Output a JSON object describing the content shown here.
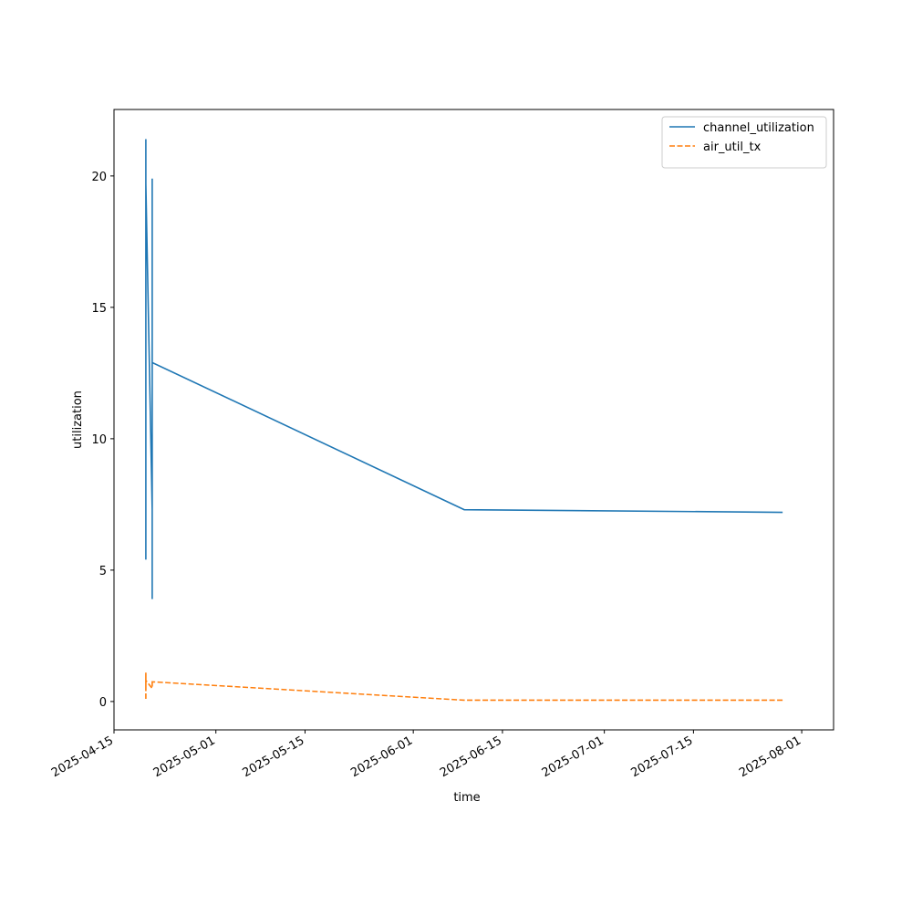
{
  "chart_data": {
    "type": "line",
    "x_label": "time",
    "y_label": "utilization",
    "x": [
      "2025-04-20",
      "2025-04-20",
      "2025-04-20",
      "2025-04-20",
      "2025-04-20",
      "2025-04-20",
      "2025-04-21",
      "2025-04-21",
      "2025-04-21",
      "2025-04-21",
      "2025-04-21",
      "2025-04-21",
      "2025-06-09",
      "2025-07-29"
    ],
    "series": [
      {
        "name": "channel_utilization",
        "color": "#1f77b4",
        "dash": "solid",
        "values": [
          21.4,
          9.3,
          19.6,
          5.4,
          17.1,
          19.7,
          7.3,
          19.9,
          9.5,
          18.0,
          3.9,
          12.9,
          7.3,
          7.2
        ]
      },
      {
        "name": "air_util_tx",
        "color": "#ff7f0e",
        "dash": "dashed",
        "values": [
          0.1,
          1.1,
          0.6,
          1.1,
          0.7,
          0.8,
          0.5,
          0.8,
          0.6,
          0.75,
          0.7,
          0.75,
          0.05,
          0.05
        ]
      }
    ],
    "xlim": [
      "2025-04-15",
      "2025-08-06"
    ],
    "xticks": [
      "2025-04-15",
      "2025-05-01",
      "2025-05-15",
      "2025-06-01",
      "2025-06-15",
      "2025-07-01",
      "2025-07-15",
      "2025-08-01"
    ],
    "ylim": [
      -1.08,
      22.53
    ],
    "yticks": [
      0,
      5,
      10,
      15,
      20
    ],
    "legend": "upper right",
    "grid": false
  }
}
